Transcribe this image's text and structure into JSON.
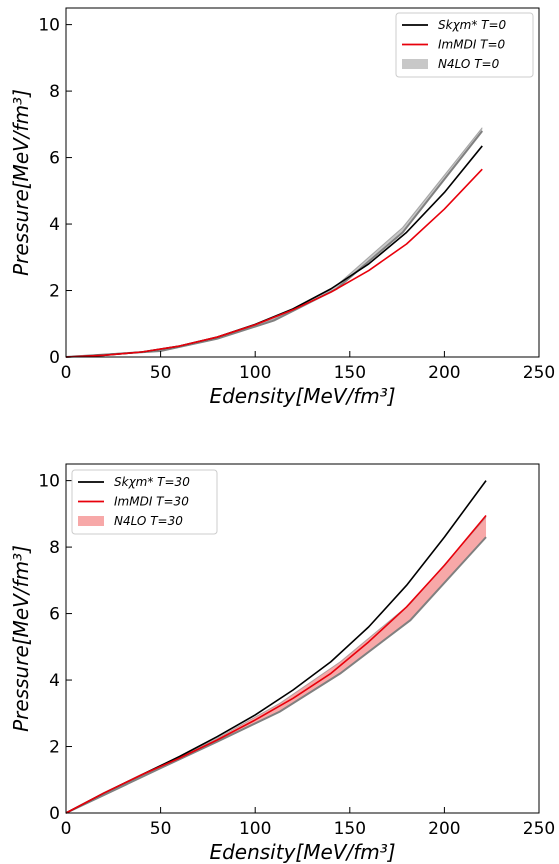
{
  "chart_data": [
    {
      "type": "line",
      "xlabel": "Edensity[MeV/fm³]",
      "ylabel": "Pressure[MeV/fm³]",
      "xlim": [
        0,
        250
      ],
      "ylim": [
        0,
        10.5
      ],
      "xticks": [
        0,
        50,
        100,
        150,
        200,
        250
      ],
      "yticks": [
        0,
        2,
        4,
        6,
        8,
        10
      ],
      "grid": false,
      "legend_position": "top-right",
      "series": [
        {
          "name": "Skχm* T=0",
          "kind": "line",
          "color": "#000000",
          "x": [
            0,
            20,
            40,
            60,
            80,
            100,
            120,
            140,
            160,
            180,
            200,
            220
          ],
          "y": [
            0,
            0.05,
            0.15,
            0.33,
            0.6,
            0.98,
            1.45,
            2.05,
            2.8,
            3.75,
            4.95,
            6.35
          ]
        },
        {
          "name": "ImMDI T=0",
          "kind": "line",
          "color": "#e8000b",
          "x": [
            0,
            20,
            40,
            60,
            80,
            100,
            120,
            140,
            160,
            180,
            200,
            220
          ],
          "y": [
            0,
            0.05,
            0.15,
            0.33,
            0.6,
            0.97,
            1.42,
            1.95,
            2.6,
            3.4,
            4.45,
            5.65
          ]
        },
        {
          "name": "N4LO T=0",
          "kind": "band",
          "color": "#c8c8c8",
          "edge_color": "#808080",
          "x": [
            0,
            50,
            80,
            110,
            143,
            178,
            220
          ],
          "lower": [
            0,
            0.18,
            0.55,
            1.1,
            2.05,
            3.75,
            6.8
          ],
          "upper": [
            0,
            0.2,
            0.6,
            1.15,
            2.15,
            3.9,
            6.9
          ]
        }
      ]
    },
    {
      "type": "line",
      "xlabel": "Edensity[MeV/fm³]",
      "ylabel": "Pressure[MeV/fm³]",
      "xlim": [
        0,
        250
      ],
      "ylim": [
        0,
        10.5
      ],
      "xticks": [
        0,
        50,
        100,
        150,
        200,
        250
      ],
      "yticks": [
        0,
        2,
        4,
        6,
        8,
        10
      ],
      "grid": false,
      "legend_position": "top-left",
      "series": [
        {
          "name": "Skχm* T=30",
          "kind": "line",
          "color": "#000000",
          "x": [
            0,
            20,
            40,
            60,
            80,
            100,
            120,
            140,
            160,
            180,
            200,
            222
          ],
          "y": [
            0,
            0.6,
            1.15,
            1.7,
            2.3,
            2.95,
            3.7,
            4.55,
            5.6,
            6.85,
            8.3,
            10.0
          ]
        },
        {
          "name": "ImMDI T=30",
          "kind": "line",
          "color": "#e8000b",
          "x": [
            0,
            20,
            40,
            60,
            80,
            100,
            120,
            140,
            160,
            180,
            200,
            222
          ],
          "y": [
            0,
            0.6,
            1.15,
            1.65,
            2.2,
            2.8,
            3.45,
            4.2,
            5.15,
            6.2,
            7.45,
            8.95
          ]
        },
        {
          "name": "N4LO T=30",
          "kind": "band",
          "color": "#f7a8a8",
          "edge_color": "#808080",
          "x": [
            0,
            50,
            80,
            113,
            145,
            182,
            222
          ],
          "lower": [
            0,
            1.35,
            2.15,
            3.05,
            4.2,
            5.8,
            8.3
          ],
          "upper": [
            0,
            1.4,
            2.25,
            3.3,
            4.55,
            6.3,
            8.9
          ]
        }
      ]
    }
  ]
}
